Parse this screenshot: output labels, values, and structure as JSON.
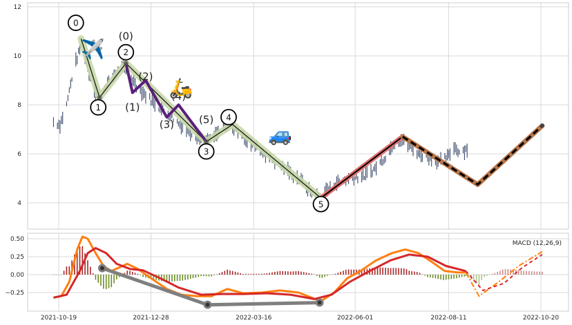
{
  "chart_data": [
    {
      "type": "line",
      "panel": "price",
      "ylim": [
        3.0,
        12.1
      ],
      "y_ticks": [
        "4",
        "6",
        "8",
        "10",
        "12"
      ],
      "grid": true,
      "price_series": [
        {
          "date": "2021-10-15",
          "v": 7.3
        },
        {
          "date": "2021-10-20",
          "v": 7.2
        },
        {
          "date": "2021-10-25",
          "v": 8.0
        },
        {
          "date": "2021-10-30",
          "v": 9.4
        },
        {
          "date": "2021-11-03",
          "v": 10.1
        },
        {
          "date": "2021-11-06",
          "v": 10.6
        },
        {
          "date": "2021-11-10",
          "v": 9.5
        },
        {
          "date": "2021-11-14",
          "v": 8.8
        },
        {
          "date": "2021-11-18",
          "v": 8.3
        },
        {
          "date": "2021-11-24",
          "v": 8.8
        },
        {
          "date": "2021-11-30",
          "v": 9.2
        },
        {
          "date": "2021-12-06",
          "v": 9.6
        },
        {
          "date": "2021-12-12",
          "v": 9.2
        },
        {
          "date": "2021-12-18",
          "v": 8.7
        },
        {
          "date": "2021-12-26",
          "v": 8.3
        },
        {
          "date": "2022-01-03",
          "v": 7.9
        },
        {
          "date": "2022-01-11",
          "v": 7.6
        },
        {
          "date": "2022-01-19",
          "v": 7.2
        },
        {
          "date": "2022-01-27",
          "v": 6.9
        },
        {
          "date": "2022-02-04",
          "v": 6.6
        },
        {
          "date": "2022-02-10",
          "v": 6.5
        },
        {
          "date": "2022-02-18",
          "v": 6.9
        },
        {
          "date": "2022-02-26",
          "v": 7.2
        },
        {
          "date": "2022-03-04",
          "v": 6.9
        },
        {
          "date": "2022-03-12",
          "v": 6.5
        },
        {
          "date": "2022-03-22",
          "v": 6.1
        },
        {
          "date": "2022-04-01",
          "v": 5.7
        },
        {
          "date": "2022-04-11",
          "v": 5.3
        },
        {
          "date": "2022-04-21",
          "v": 4.9
        },
        {
          "date": "2022-04-29",
          "v": 4.4
        },
        {
          "date": "2022-05-05",
          "v": 4.2
        },
        {
          "date": "2022-05-12",
          "v": 4.6
        },
        {
          "date": "2022-05-20",
          "v": 4.9
        },
        {
          "date": "2022-05-30",
          "v": 5.0
        },
        {
          "date": "2022-06-08",
          "v": 5.1
        },
        {
          "date": "2022-06-16",
          "v": 5.4
        },
        {
          "date": "2022-06-24",
          "v": 5.9
        },
        {
          "date": "2022-06-30",
          "v": 6.4
        },
        {
          "date": "2022-07-06",
          "v": 6.6
        },
        {
          "date": "2022-07-12",
          "v": 6.3
        },
        {
          "date": "2022-07-20",
          "v": 6.0
        },
        {
          "date": "2022-07-28",
          "v": 5.8
        },
        {
          "date": "2022-08-05",
          "v": 5.7
        },
        {
          "date": "2022-08-11",
          "v": 5.9
        },
        {
          "date": "2022-08-15",
          "v": 6.3
        },
        {
          "date": "2022-08-19",
          "v": 6.1
        },
        {
          "date": "2022-08-25",
          "v": 6.2
        }
      ],
      "wave_main": [
        {
          "date": "2021-11-05",
          "v": 10.7
        },
        {
          "date": "2021-11-19",
          "v": 8.3
        },
        {
          "date": "2021-12-09",
          "v": 9.7
        },
        {
          "date": "2022-02-08",
          "v": 6.5
        },
        {
          "date": "2022-02-28",
          "v": 7.2
        },
        {
          "date": "2022-05-06",
          "v": 4.2
        }
      ],
      "wave_sub": [
        {
          "date": "2021-12-09",
          "v": 9.7
        },
        {
          "date": "2021-12-14",
          "v": 8.5
        },
        {
          "date": "2021-12-24",
          "v": 9.0
        },
        {
          "date": "2022-01-09",
          "v": 7.5
        },
        {
          "date": "2022-01-18",
          "v": 8.0
        },
        {
          "date": "2022-02-08",
          "v": 6.5
        }
      ],
      "projection_red": [
        {
          "date": "2022-05-06",
          "v": 4.2
        },
        {
          "date": "2022-07-07",
          "v": 6.7
        }
      ],
      "projection_dashed": [
        {
          "date": "2022-07-07",
          "v": 6.7
        },
        {
          "date": "2022-09-02",
          "v": 4.75
        },
        {
          "date": "2022-10-21",
          "v": 7.15
        }
      ],
      "labels_circled": [
        {
          "text": "0",
          "date": "2021-11-01",
          "v": 11.35
        },
        {
          "text": "1",
          "date": "2021-11-18",
          "v": 7.9
        },
        {
          "text": "2",
          "date": "2021-12-09",
          "v": 10.15
        },
        {
          "text": "3",
          "date": "2022-02-08",
          "v": 6.1
        },
        {
          "text": "4",
          "date": "2022-02-25",
          "v": 7.5
        },
        {
          "text": "5",
          "date": "2022-05-06",
          "v": 3.95
        }
      ],
      "labels_paren": [
        {
          "text": "(0)",
          "date": "2021-12-09",
          "v": 10.8
        },
        {
          "text": "(1)",
          "date": "2021-12-14",
          "v": 7.9
        },
        {
          "text": "(2)",
          "date": "2021-12-24",
          "v": 9.15
        },
        {
          "text": "(3)",
          "date": "2022-01-09",
          "v": 7.2
        },
        {
          "text": "(4)",
          "date": "2022-01-18",
          "v": 8.35
        },
        {
          "text": "(5)",
          "date": "2022-02-08",
          "v": 7.4
        }
      ],
      "emoji_markers": [
        {
          "icon": "airplane",
          "glyph": "✈️",
          "date": "2021-11-14",
          "v": 10.3
        },
        {
          "icon": "scooter",
          "glyph": "🛵",
          "date": "2022-01-20",
          "v": 8.7
        },
        {
          "icon": "car",
          "glyph": "🚙",
          "date": "2022-04-05",
          "v": 6.8
        }
      ]
    },
    {
      "type": "line",
      "panel": "macd",
      "legend": "MACD (12,26,9)",
      "ylim": [
        -0.48,
        0.6
      ],
      "y_ticks": [
        "0.50",
        "0.25",
        "0.00",
        "−0.25"
      ],
      "x_ticks": [
        "2021-10-19",
        "2021-12-28",
        "2022-03-16",
        "2022-06-01",
        "2022-08-11",
        "2022-10-20"
      ],
      "grid": true,
      "macd": [
        {
          "date": "2021-10-15",
          "v": -0.32
        },
        {
          "date": "2021-10-21",
          "v": -0.3
        },
        {
          "date": "2021-10-27",
          "v": -0.1
        },
        {
          "date": "2021-11-02",
          "v": 0.35
        },
        {
          "date": "2021-11-06",
          "v": 0.53
        },
        {
          "date": "2021-11-10",
          "v": 0.5
        },
        {
          "date": "2021-11-16",
          "v": 0.3
        },
        {
          "date": "2021-11-22",
          "v": 0.12
        },
        {
          "date": "2021-11-28",
          "v": 0.05
        },
        {
          "date": "2021-12-04",
          "v": 0.1
        },
        {
          "date": "2021-12-10",
          "v": 0.15
        },
        {
          "date": "2021-12-18",
          "v": 0.08
        },
        {
          "date": "2021-12-28",
          "v": -0.05
        },
        {
          "date": "2022-01-09",
          "v": -0.2
        },
        {
          "date": "2022-01-20",
          "v": -0.28
        },
        {
          "date": "2022-02-01",
          "v": -0.3
        },
        {
          "date": "2022-02-12",
          "v": -0.3
        },
        {
          "date": "2022-02-24",
          "v": -0.2
        },
        {
          "date": "2022-03-08",
          "v": -0.26
        },
        {
          "date": "2022-03-22",
          "v": -0.25
        },
        {
          "date": "2022-04-05",
          "v": -0.22
        },
        {
          "date": "2022-04-19",
          "v": -0.25
        },
        {
          "date": "2022-05-06",
          "v": -0.37
        },
        {
          "date": "2022-05-16",
          "v": -0.25
        },
        {
          "date": "2022-05-26",
          "v": -0.05
        },
        {
          "date": "2022-06-05",
          "v": 0.05
        },
        {
          "date": "2022-06-17",
          "v": 0.2
        },
        {
          "date": "2022-06-29",
          "v": 0.3
        },
        {
          "date": "2022-07-09",
          "v": 0.35
        },
        {
          "date": "2022-07-19",
          "v": 0.3
        },
        {
          "date": "2022-07-29",
          "v": 0.18
        },
        {
          "date": "2022-08-08",
          "v": 0.05
        },
        {
          "date": "2022-08-18",
          "v": 0.03
        },
        {
          "date": "2022-08-24",
          "v": 0.03
        }
      ],
      "signal": [
        {
          "date": "2021-10-15",
          "v": -0.32
        },
        {
          "date": "2021-10-25",
          "v": -0.28
        },
        {
          "date": "2021-11-04",
          "v": 0.05
        },
        {
          "date": "2021-11-10",
          "v": 0.3
        },
        {
          "date": "2021-11-16",
          "v": 0.37
        },
        {
          "date": "2021-11-24",
          "v": 0.3
        },
        {
          "date": "2021-12-02",
          "v": 0.15
        },
        {
          "date": "2021-12-12",
          "v": 0.08
        },
        {
          "date": "2021-12-22",
          "v": 0.06
        },
        {
          "date": "2022-01-04",
          "v": -0.05
        },
        {
          "date": "2022-01-18",
          "v": -0.18
        },
        {
          "date": "2022-02-04",
          "v": -0.28
        },
        {
          "date": "2022-02-20",
          "v": -0.27
        },
        {
          "date": "2022-03-08",
          "v": -0.27
        },
        {
          "date": "2022-03-26",
          "v": -0.26
        },
        {
          "date": "2022-04-13",
          "v": -0.28
        },
        {
          "date": "2022-05-01",
          "v": -0.34
        },
        {
          "date": "2022-05-14",
          "v": -0.28
        },
        {
          "date": "2022-05-28",
          "v": -0.1
        },
        {
          "date": "2022-06-12",
          "v": 0.05
        },
        {
          "date": "2022-06-28",
          "v": 0.2
        },
        {
          "date": "2022-07-12",
          "v": 0.28
        },
        {
          "date": "2022-07-26",
          "v": 0.25
        },
        {
          "date": "2022-08-09",
          "v": 0.12
        },
        {
          "date": "2022-08-24",
          "v": 0.05
        }
      ],
      "macd_projection": [
        {
          "date": "2022-08-24",
          "v": 0.03
        },
        {
          "date": "2022-09-03",
          "v": -0.3
        },
        {
          "date": "2022-09-18",
          "v": -0.1
        },
        {
          "date": "2022-10-03",
          "v": 0.12
        },
        {
          "date": "2022-10-21",
          "v": 0.32
        }
      ],
      "signal_projection": [
        {
          "date": "2022-08-24",
          "v": 0.05
        },
        {
          "date": "2022-09-06",
          "v": -0.22
        },
        {
          "date": "2022-09-22",
          "v": -0.12
        },
        {
          "date": "2022-10-06",
          "v": 0.1
        },
        {
          "date": "2022-10-21",
          "v": 0.28
        }
      ],
      "wave_points": [
        {
          "date": "2021-11-21",
          "v": 0.09
        },
        {
          "date": "2022-02-09",
          "v": -0.42
        },
        {
          "date": "2022-05-05",
          "v": -0.39
        }
      ]
    }
  ],
  "colors": {
    "bars": "#3a4a6b",
    "macd": "#ff7f0e",
    "signal": "#d62728",
    "hist_pos": "#a82424",
    "hist_neg": "#6b8e23",
    "wave_main": "#1a1a1a",
    "wave_halo": "#c8d8a8",
    "wave_sub": "#5b1f7a",
    "proj_red": "#e07070",
    "proj_brown": "#b8764a",
    "macd_wave": "#7f7f7f"
  }
}
